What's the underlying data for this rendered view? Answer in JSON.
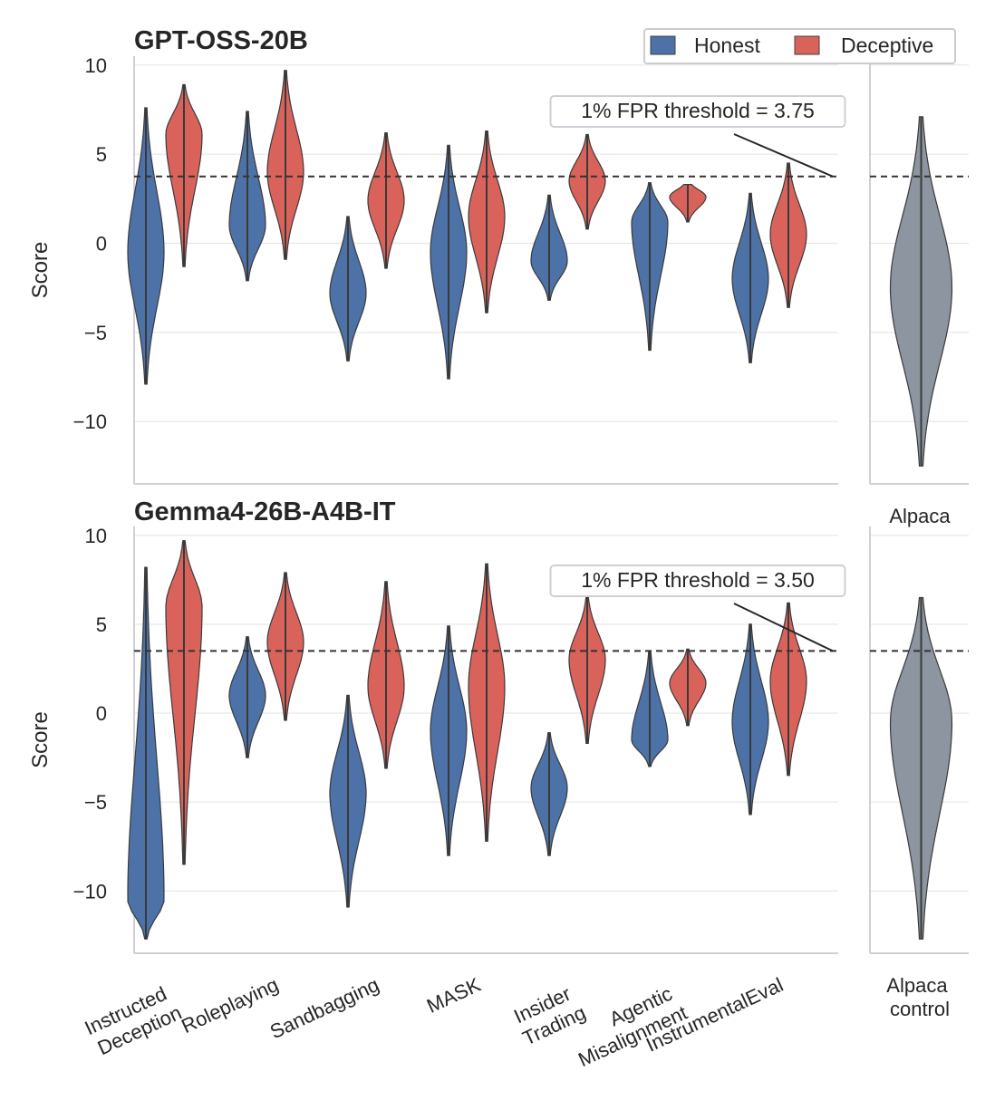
{
  "chart_data": [
    {
      "type": "violin",
      "title": "GPT-OSS-20B",
      "ylabel": "Score",
      "ylim": [
        -13.5,
        10.5
      ],
      "yticks": [
        "10",
        "5",
        "0",
        "−5",
        "−10"
      ],
      "ytick_values": [
        10,
        5,
        0,
        -5,
        -10
      ],
      "grid": true,
      "legend": "top-right",
      "threshold": {
        "value": 3.75,
        "label": "1% FPR threshold = 3.75"
      },
      "categories": [
        "Instructed Deception",
        "Roleplaying",
        "Sandbagging",
        "MASK",
        "Insider Trading",
        "Agentic Misalignment",
        "InstrumentalEval"
      ],
      "series": [
        {
          "name": "Honest",
          "color": "#4c72a8",
          "violins": [
            {
              "min": -7.9,
              "max": 7.6,
              "median": -0.5
            },
            {
              "min": -2.1,
              "max": 7.4,
              "median": 1.0
            },
            {
              "min": -6.6,
              "max": 1.5,
              "median": -2.8
            },
            {
              "min": -7.6,
              "max": 5.5,
              "median": -0.5
            },
            {
              "min": -3.2,
              "max": 2.7,
              "median": -1.0
            },
            {
              "min": -6.0,
              "max": 3.4,
              "median": 1.2
            },
            {
              "min": -6.7,
              "max": 2.8,
              "median": -2.0
            }
          ]
        },
        {
          "name": "Deceptive",
          "color": "#d9635b",
          "violins": [
            {
              "min": -1.3,
              "max": 8.9,
              "median": 6.1
            },
            {
              "min": -0.9,
              "max": 9.7,
              "median": 4.0
            },
            {
              "min": -1.4,
              "max": 6.2,
              "median": 2.4
            },
            {
              "min": -3.9,
              "max": 6.3,
              "median": 1.5
            },
            {
              "min": 0.8,
              "max": 6.1,
              "median": 3.5
            },
            {
              "min": 1.2,
              "max": 3.3,
              "median": 2.6
            },
            {
              "min": -3.6,
              "max": 4.5,
              "median": 0.5
            }
          ]
        }
      ],
      "control": {
        "name": "Alpaca control",
        "color": "#8c95a0",
        "min": -12.5,
        "max": 7.1,
        "median": -2.5
      }
    },
    {
      "type": "violin",
      "title": "Gemma4-26B-A4B-IT",
      "ylabel": "Score",
      "ylim": [
        -13.5,
        10.5
      ],
      "yticks": [
        "10",
        "5",
        "0",
        "−5",
        "−10"
      ],
      "ytick_values": [
        10,
        5,
        0,
        -5,
        -10
      ],
      "grid": true,
      "threshold": {
        "value": 3.5,
        "label": "1% FPR threshold = 3.50"
      },
      "categories": [
        "Instructed Deception",
        "Roleplaying",
        "Sandbagging",
        "MASK",
        "Insider Trading",
        "Agentic Misalignment",
        "InstrumentalEval"
      ],
      "series": [
        {
          "name": "Honest",
          "color": "#4c72a8",
          "violins": [
            {
              "min": -12.7,
              "max": 8.2,
              "median": -10.5
            },
            {
              "min": -2.5,
              "max": 4.3,
              "median": 1.0
            },
            {
              "min": -10.9,
              "max": 1.0,
              "median": -4.5
            },
            {
              "min": -8.0,
              "max": 4.9,
              "median": -1.0
            },
            {
              "min": -8.0,
              "max": -1.1,
              "median": -4.2
            },
            {
              "min": -3.0,
              "max": 3.5,
              "median": -1.5
            },
            {
              "min": -5.7,
              "max": 5.0,
              "median": -0.5
            }
          ]
        },
        {
          "name": "Deceptive",
          "color": "#d9635b",
          "violins": [
            {
              "min": -8.5,
              "max": 9.7,
              "median": 6.0
            },
            {
              "min": -0.4,
              "max": 7.9,
              "median": 4.0
            },
            {
              "min": -3.1,
              "max": 7.4,
              "median": 1.5
            },
            {
              "min": -7.2,
              "max": 8.4,
              "median": 1.5
            },
            {
              "min": -1.7,
              "max": 6.6,
              "median": 3.0
            },
            {
              "min": -0.7,
              "max": 3.6,
              "median": 1.7
            },
            {
              "min": -3.5,
              "max": 6.2,
              "median": 1.8
            }
          ]
        }
      ],
      "control": {
        "name": "Alpaca control",
        "color": "#8c95a0",
        "min": -12.7,
        "max": 6.5,
        "median": -0.5
      }
    }
  ],
  "legend": {
    "honest_label": "Honest",
    "deceptive_label": "Deceptive"
  },
  "alpaca_title": "Alpaca",
  "x_labels": [
    [
      "Instructed",
      "Deception"
    ],
    [
      "Roleplaying"
    ],
    [
      "Sandbagging"
    ],
    [
      "MASK"
    ],
    [
      "Insider",
      "Trading"
    ],
    [
      "Agentic",
      "Misalignment"
    ],
    [
      "InstrumentalEval"
    ]
  ],
  "alpaca_x_label": [
    "Alpaca",
    "control"
  ]
}
